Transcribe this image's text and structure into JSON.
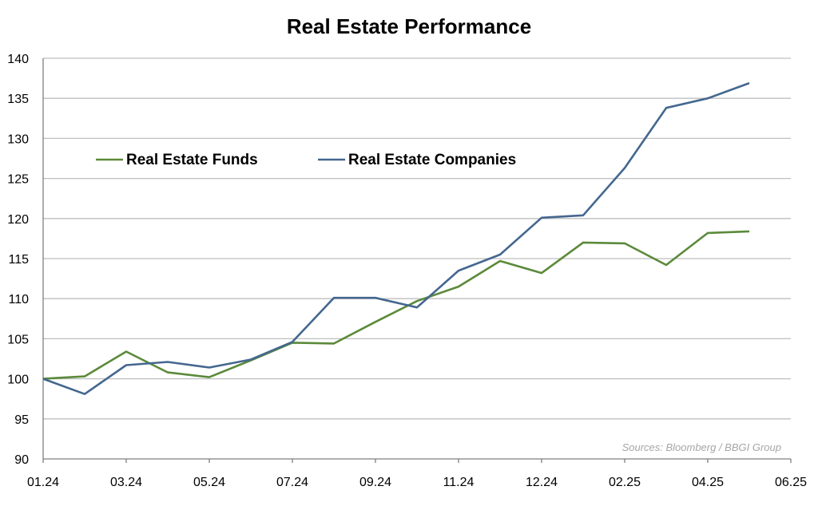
{
  "chart_data": {
    "type": "line",
    "title": "Real Estate Performance",
    "xlabel": "",
    "ylabel": "",
    "ylim": [
      90,
      140
    ],
    "yticks": [
      90,
      95,
      100,
      105,
      110,
      115,
      120,
      125,
      130,
      135,
      140
    ],
    "x_tick_labels": [
      "01.24",
      "03.24",
      "05.24",
      "07.24",
      "09.24",
      "11.24",
      "12.24",
      "02.25",
      "04.25",
      "06.25"
    ],
    "grid": true,
    "legend_placement": "top-left inside plot",
    "source": "Sources: Bloomberg / BBGI Group",
    "series": [
      {
        "name": "Real Estate Funds",
        "color": "#5b8a3a",
        "values": [
          100.0,
          100.3,
          103.4,
          100.8,
          100.2,
          102.3,
          104.5,
          104.4,
          107.1,
          109.7,
          111.5,
          114.7,
          113.2,
          117.0,
          116.9,
          114.2,
          118.2,
          118.4
        ]
      },
      {
        "name": "Real Estate Companies",
        "color": "#44678f",
        "values": [
          100.0,
          98.1,
          101.7,
          102.1,
          101.4,
          102.4,
          104.6,
          110.1,
          110.1,
          108.9,
          113.5,
          115.5,
          120.1,
          120.4,
          126.3,
          133.8,
          135.0,
          136.9
        ]
      }
    ]
  }
}
